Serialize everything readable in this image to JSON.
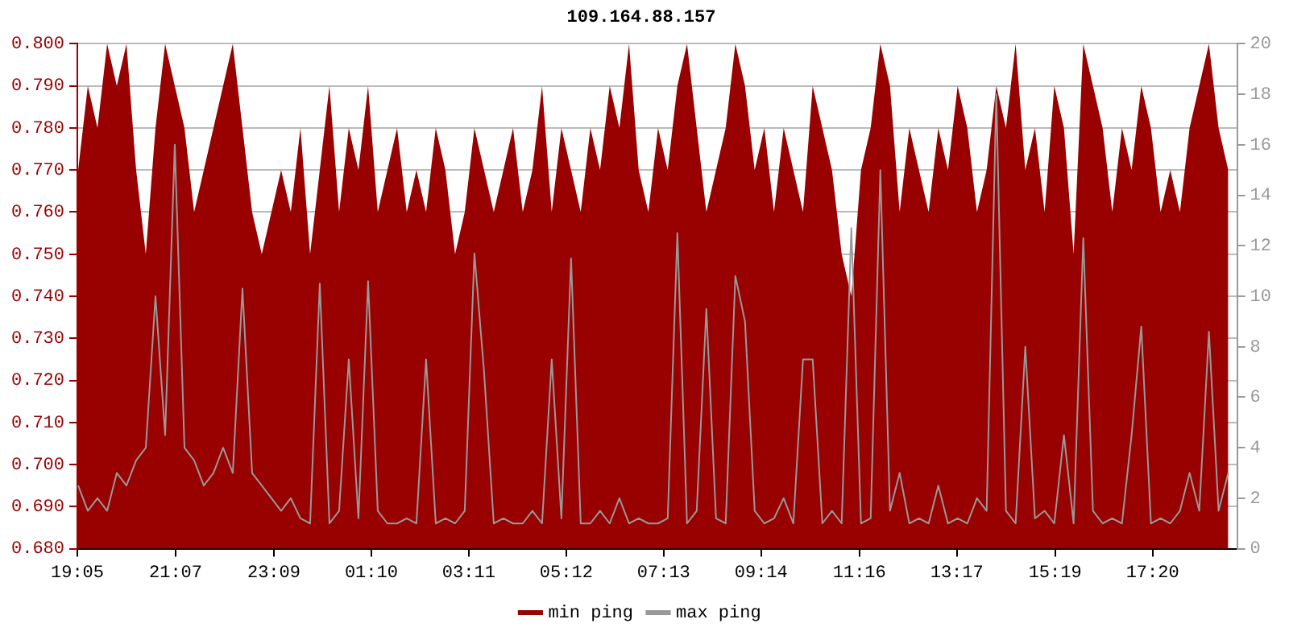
{
  "chart_data": {
    "type": "area",
    "title": "109.164.88.157",
    "x": [
      "--01-01T19:06",
      "--01-01T19:18",
      "--01-01T19:30",
      "--01-01T19:42",
      "--01-01T19:54",
      "--01-01T20:06",
      "--01-01T20:18",
      "--01-01T20:30",
      "--01-01T20:42",
      "--01-01T20:54",
      "--01-01T21:06",
      "--01-01T21:18",
      "--01-01T21:30",
      "--01-01T21:42",
      "--01-01T21:54",
      "--01-01T22:06",
      "--01-01T22:18",
      "--01-01T22:30",
      "--01-01T22:42",
      "--01-01T22:54",
      "--01-01T23:06",
      "--01-01T23:18",
      "--01-01T23:30",
      "--01-01T23:42",
      "--01-01T23:54",
      "--01-02T00:06",
      "--01-02T00:18",
      "--01-02T00:30",
      "--01-02T00:42",
      "--01-02T00:54",
      "--01-02T01:06",
      "--01-02T01:18",
      "--01-02T01:30",
      "--01-02T01:42",
      "--01-02T01:54",
      "--01-02T02:06",
      "--01-02T02:18",
      "--01-02T02:30",
      "--01-02T02:42",
      "--01-02T02:54",
      "--01-02T03:06",
      "--01-02T03:18",
      "--01-02T03:30",
      "--01-02T03:42",
      "--01-02T03:54",
      "--01-02T04:06",
      "--01-02T04:18",
      "--01-02T04:30",
      "--01-02T04:42",
      "--01-02T04:54",
      "--01-02T05:06",
      "--01-02T05:18",
      "--01-02T05:30",
      "--01-02T05:42",
      "--01-02T05:54",
      "--01-02T06:06",
      "--01-02T06:18",
      "--01-02T06:30",
      "--01-02T06:42",
      "--01-02T06:54",
      "--01-02T07:06",
      "--01-02T07:18",
      "--01-02T07:30",
      "--01-02T07:42",
      "--01-02T07:54",
      "--01-02T08:06",
      "--01-02T08:18",
      "--01-02T08:30",
      "--01-02T08:42",
      "--01-02T08:54",
      "--01-02T09:06",
      "--01-02T09:18",
      "--01-02T09:30",
      "--01-02T09:42",
      "--01-02T09:54",
      "--01-02T10:06",
      "--01-02T10:18",
      "--01-02T10:30",
      "--01-02T10:42",
      "--01-02T10:54",
      "--01-02T11:06",
      "--01-02T11:18",
      "--01-02T11:30",
      "--01-02T11:42",
      "--01-02T11:54",
      "--01-02T12:06",
      "--01-02T12:18",
      "--01-02T12:30",
      "--01-02T12:42",
      "--01-02T12:54",
      "--01-02T13:06",
      "--01-02T13:18",
      "--01-02T13:30",
      "--01-02T13:42",
      "--01-02T13:54",
      "--01-02T14:06",
      "--01-02T14:18",
      "--01-02T14:30",
      "--01-02T14:42",
      "--01-02T14:54",
      "--01-02T15:06",
      "--01-02T15:18",
      "--01-02T15:30",
      "--01-02T15:42",
      "--01-02T15:54",
      "--01-02T16:06",
      "--01-02T16:18",
      "--01-02T16:30",
      "--01-02T16:42",
      "--01-02T16:54",
      "--01-02T17:06",
      "--01-02T17:18",
      "--01-02T17:30",
      "--01-02T17:42",
      "--01-02T17:54",
      "--01-02T18:06",
      "--01-02T18:18",
      "--01-02T18:30",
      "--01-02T18:42",
      "--01-02T18:54"
    ],
    "series": [
      {
        "name": "min ping",
        "color": "#990000",
        "values": [
          0.77,
          0.79,
          0.78,
          0.8,
          0.79,
          0.8,
          0.77,
          0.75,
          0.78,
          0.8,
          0.79,
          0.78,
          0.76,
          0.77,
          0.78,
          0.79,
          0.8,
          0.78,
          0.76,
          0.75,
          0.76,
          0.77,
          0.76,
          0.78,
          0.75,
          0.77,
          0.79,
          0.76,
          0.78,
          0.77,
          0.79,
          0.76,
          0.77,
          0.78,
          0.76,
          0.77,
          0.76,
          0.78,
          0.77,
          0.75,
          0.76,
          0.78,
          0.77,
          0.76,
          0.77,
          0.78,
          0.76,
          0.77,
          0.79,
          0.76,
          0.78,
          0.77,
          0.76,
          0.78,
          0.77,
          0.79,
          0.78,
          0.8,
          0.77,
          0.76,
          0.78,
          0.77,
          0.79,
          0.8,
          0.78,
          0.76,
          0.77,
          0.78,
          0.8,
          0.79,
          0.77,
          0.78,
          0.76,
          0.78,
          0.77,
          0.76,
          0.79,
          0.78,
          0.77,
          0.75,
          0.74,
          0.77,
          0.78,
          0.8,
          0.79,
          0.76,
          0.78,
          0.77,
          0.76,
          0.78,
          0.77,
          0.79,
          0.78,
          0.76,
          0.77,
          0.79,
          0.78,
          0.8,
          0.77,
          0.78,
          0.76,
          0.79,
          0.78,
          0.75,
          0.8,
          0.79,
          0.78,
          0.76,
          0.78,
          0.77,
          0.79,
          0.78,
          0.76,
          0.77,
          0.76,
          0.78,
          0.79,
          0.8,
          0.78,
          0.77
        ]
      },
      {
        "name": "max ping",
        "color": "#999999",
        "type": "line",
        "axis": "y2",
        "values": [
          2.5,
          1.5,
          2,
          1.5,
          3,
          2.5,
          3.5,
          4,
          10,
          4.5,
          16,
          4,
          3.5,
          2.5,
          3,
          4,
          3,
          10.3,
          3,
          2.5,
          2,
          1.5,
          2,
          1.2,
          1,
          10.5,
          1,
          1.5,
          7.5,
          1.2,
          10.6,
          1.5,
          1,
          1,
          1.2,
          1,
          7.5,
          1,
          1.2,
          1,
          1.5,
          11.7,
          7,
          1,
          1.2,
          1,
          1,
          1.5,
          1,
          7.5,
          1.2,
          11.5,
          1,
          1,
          1.5,
          1,
          2,
          1,
          1.2,
          1,
          1,
          1.2,
          12.5,
          1,
          1.5,
          9.5,
          1.2,
          1,
          10.8,
          9,
          1.5,
          1,
          1.2,
          2,
          1,
          7.5,
          7.5,
          1,
          1.5,
          1,
          12.7,
          1,
          1.2,
          15,
          1.5,
          3,
          1,
          1.2,
          1,
          2.5,
          1,
          1.2,
          1,
          2,
          1.5,
          18,
          1.5,
          1,
          8,
          1.2,
          1.5,
          1,
          4.5,
          1,
          12.3,
          1.5,
          1,
          1.2,
          1,
          4.5,
          8.8,
          1,
          1.2,
          1,
          1.5,
          3,
          1.5,
          8.6,
          1.5,
          3
        ]
      }
    ],
    "xlim": [
      "--01-01T19:05",
      "--01-02T19:05"
    ],
    "xticks": [
      {
        "value": "--01-01T19:05",
        "label": "19:05"
      },
      {
        "value": "--01-01T21:07",
        "label": "21:07"
      },
      {
        "value": "--01-01T23:09",
        "label": "23:09"
      },
      {
        "value": "--01-02T01:10",
        "label": "01:10"
      },
      {
        "value": "--01-02T03:11",
        "label": "03:11"
      },
      {
        "value": "--01-02T05:12",
        "label": "05:12"
      },
      {
        "value": "--01-02T07:13",
        "label": "07:13"
      },
      {
        "value": "--01-02T09:14",
        "label": "09:14"
      },
      {
        "value": "--01-02T11:16",
        "label": "11:16"
      },
      {
        "value": "--01-02T13:17",
        "label": "13:17"
      },
      {
        "value": "--01-02T15:19",
        "label": "15:19"
      },
      {
        "value": "--01-02T17:20",
        "label": "17:20"
      }
    ],
    "ylim": [
      0.68,
      0.8
    ],
    "yticks": [
      {
        "value": 0.68,
        "label": "0.680"
      },
      {
        "value": 0.69,
        "label": "0.690"
      },
      {
        "value": 0.7,
        "label": "0.700"
      },
      {
        "value": 0.71,
        "label": "0.710"
      },
      {
        "value": 0.72,
        "label": "0.720"
      },
      {
        "value": 0.73,
        "label": "0.730"
      },
      {
        "value": 0.74,
        "label": "0.740"
      },
      {
        "value": 0.75,
        "label": "0.750"
      },
      {
        "value": 0.76,
        "label": "0.760"
      },
      {
        "value": 0.77,
        "label": "0.770"
      },
      {
        "value": 0.78,
        "label": "0.780"
      },
      {
        "value": 0.79,
        "label": "0.790"
      },
      {
        "value": 0.8,
        "label": "0.800"
      }
    ],
    "y2lim": [
      0,
      20
    ],
    "y2ticks": [
      0,
      2,
      4,
      6,
      8,
      10,
      12,
      14,
      16,
      18,
      20
    ],
    "grid": "y",
    "legend": "bottom",
    "marker": "none",
    "line_style": "solid"
  }
}
